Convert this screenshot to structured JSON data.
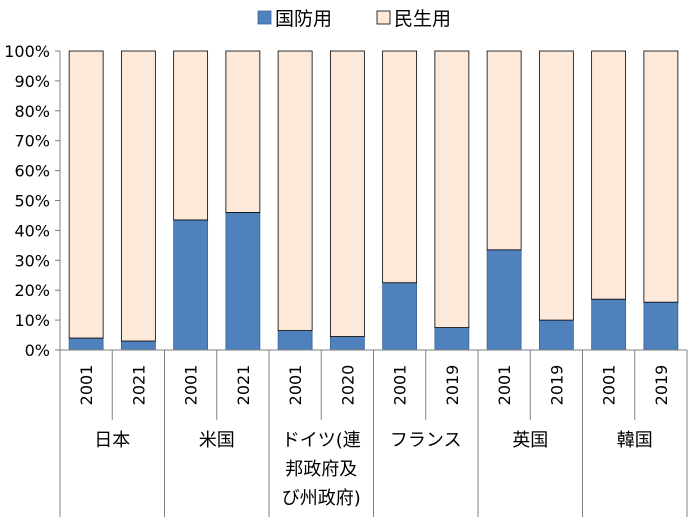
{
  "chart_data": {
    "type": "bar",
    "stacked": true,
    "ylim": [
      0,
      100
    ],
    "yticks": [
      "0%",
      "10%",
      "20%",
      "30%",
      "40%",
      "50%",
      "60%",
      "70%",
      "80%",
      "90%",
      "100%"
    ],
    "grid": false,
    "legend_position": "top-center",
    "series": [
      {
        "name": "国防用",
        "color": "#4f81bd",
        "values": [
          4,
          3,
          43.5,
          46,
          6.5,
          4.5,
          22.5,
          7.5,
          33.5,
          10,
          17,
          16
        ]
      },
      {
        "name": "民生用",
        "color": "#fde9d9",
        "values": [
          96,
          97,
          56.5,
          54,
          93.5,
          95.5,
          77.5,
          92.5,
          66.5,
          90,
          83,
          84
        ]
      }
    ],
    "categories": [
      "2001",
      "2021",
      "2001",
      "2021",
      "2001",
      "2020",
      "2001",
      "2019",
      "2001",
      "2019",
      "2001",
      "2019"
    ],
    "groups": [
      {
        "lines": [
          "日本"
        ],
        "span": 2
      },
      {
        "lines": [
          "米国"
        ],
        "span": 2
      },
      {
        "lines": [
          "ドイツ(連",
          "邦政府及",
          "び州政府)"
        ],
        "span": 2
      },
      {
        "lines": [
          "フランス"
        ],
        "span": 2
      },
      {
        "lines": [
          "英国"
        ],
        "span": 2
      },
      {
        "lines": [
          "韓国"
        ],
        "span": 2
      }
    ]
  }
}
